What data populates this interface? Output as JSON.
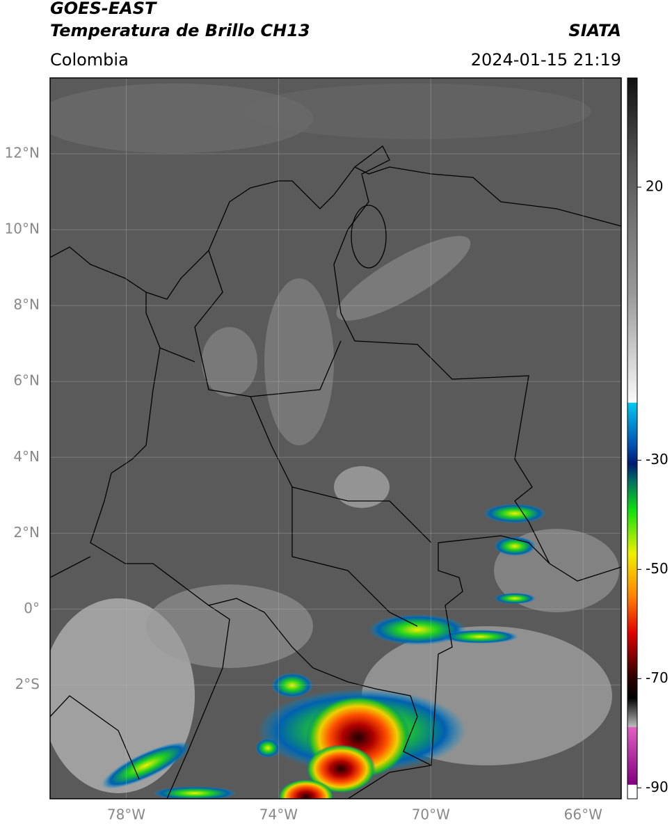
{
  "header": {
    "satellite": "GOES-EAST",
    "product": "Temperatura de Brillo CH13",
    "agency": "SIATA",
    "region": "Colombia",
    "datetime": "2024-01-15 21:19"
  },
  "map": {
    "lonlim": [
      -80,
      -65
    ],
    "latlim": [
      -5,
      14
    ],
    "lonticks": [
      {
        "value": -78,
        "label": "78°W"
      },
      {
        "value": -74,
        "label": "74°W"
      },
      {
        "value": -70,
        "label": "70°W"
      },
      {
        "value": -66,
        "label": "66°W"
      }
    ],
    "latticks": [
      {
        "value": 12,
        "label": "12°N"
      },
      {
        "value": 10,
        "label": "10°N"
      },
      {
        "value": 8,
        "label": "8°N"
      },
      {
        "value": 6,
        "label": "6°N"
      },
      {
        "value": 4,
        "label": "4°N"
      },
      {
        "value": 2,
        "label": "2°N"
      },
      {
        "value": 0,
        "label": "0°"
      },
      {
        "value": -2,
        "label": "2°S"
      }
    ]
  },
  "colorbar": {
    "lim": [
      -92,
      40
    ],
    "ticks": [
      20,
      -30,
      -50,
      -70,
      -90
    ]
  }
}
